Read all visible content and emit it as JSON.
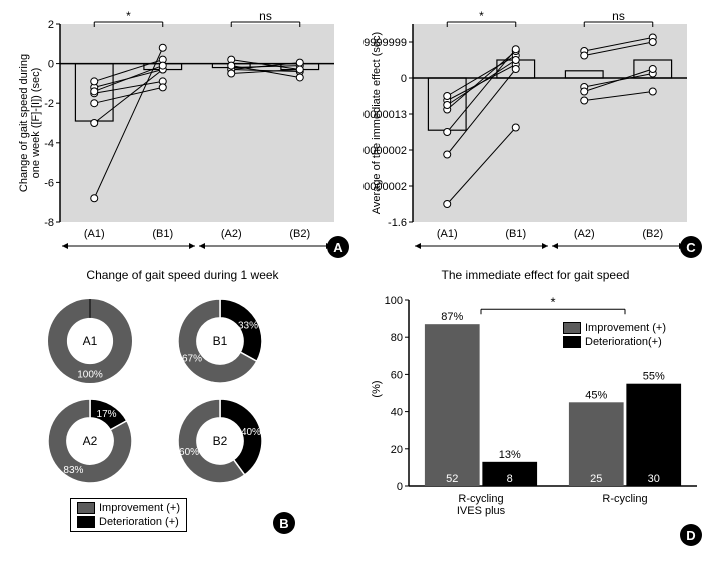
{
  "colors": {
    "bg": "#ffffff",
    "shade": "#d9d9d9",
    "bar_outline": "#000000",
    "bar_fillA": "#b0b0b0",
    "bar_fillC": "#b0b0b0",
    "marker_fill": "#ffffff",
    "marker_stroke": "#000000",
    "improvement": "#5c5c5c",
    "deterioration": "#000000",
    "axis": "#000000",
    "sig_line": "#000000"
  },
  "panelA": {
    "ylabel": "Change of gait speed during\none week ([F]-[I]) (sec)",
    "ylim": [
      -8,
      2
    ],
    "ytick_step": 2,
    "groups": [
      "(A1)",
      "(B1)",
      "(A2)",
      "(B2)"
    ],
    "bars": [
      -2.9,
      -0.3,
      -0.2,
      -0.3
    ],
    "sig": [
      {
        "from": 0,
        "to": 1,
        "label": "*",
        "y": 2
      },
      {
        "from": 2,
        "to": 3,
        "label": "ns",
        "y": 2
      }
    ],
    "shade_pairs": [
      [
        0,
        1
      ],
      [
        2,
        3
      ]
    ],
    "lines_left": [
      [
        -1.2,
        -0.3
      ],
      [
        -0.9,
        0.2
      ],
      [
        -1.5,
        -0.9
      ],
      [
        -3.0,
        -0.3
      ],
      [
        -2.0,
        -1.2
      ],
      [
        -6.8,
        0.8
      ],
      [
        -1.4,
        -0.1
      ]
    ],
    "lines_right": [
      [
        0.2,
        -0.3
      ],
      [
        -0.2,
        -0.1
      ],
      [
        -0.3,
        0.05
      ],
      [
        -0.3,
        -0.4
      ],
      [
        -0.5,
        -0.3
      ],
      [
        -0.1,
        -0.7
      ]
    ],
    "marker_r": 3.5,
    "label": "A"
  },
  "panelC": {
    "ylabel": "Average of the immediate effect (sec)",
    "ylim": [
      -1.6,
      0.6
    ],
    "ytick_step": 0.4,
    "groups": [
      "(A1)",
      "(B1)",
      "(A2)",
      "(B2)"
    ],
    "bars": [
      -0.58,
      0.2,
      0.08,
      0.2
    ],
    "sig": [
      {
        "from": 0,
        "to": 1,
        "label": "*",
        "y": 0.6
      },
      {
        "from": 2,
        "to": 3,
        "label": "ns",
        "y": 0.6
      }
    ],
    "shade_pairs": [
      [
        0,
        1
      ],
      [
        2,
        3
      ]
    ],
    "lines_left": [
      [
        -0.25,
        0.15
      ],
      [
        -0.2,
        0.25
      ],
      [
        -0.35,
        0.3
      ],
      [
        -0.6,
        0.32
      ],
      [
        -0.85,
        0.1
      ],
      [
        -1.4,
        -0.55
      ],
      [
        -0.3,
        0.2
      ]
    ],
    "lines_right": [
      [
        0.3,
        0.45
      ],
      [
        0.25,
        0.4
      ],
      [
        -0.1,
        0.05
      ],
      [
        -0.15,
        0.1
      ],
      [
        -0.25,
        -0.15
      ]
    ],
    "marker_r": 3.5,
    "label": "C"
  },
  "panelB": {
    "title": "Change of gait speed during 1 week",
    "charts": [
      {
        "name": "A1",
        "imp": 100,
        "det": 0
      },
      {
        "name": "B1",
        "imp": 67,
        "det": 33
      },
      {
        "name": "A2",
        "imp": 83,
        "det": 17
      },
      {
        "name": "B2",
        "imp": 60,
        "det": 40
      }
    ],
    "legend": {
      "imp": "Improvement (+)",
      "det": "Deterioration (+)"
    },
    "donut_inner": 0.55,
    "label": "B"
  },
  "panelD": {
    "title": "The immediate effect for gait speed",
    "ylabel": "(%)",
    "ylim": [
      0,
      100
    ],
    "ytick_step": 20,
    "groups": [
      "R-cycling\nIVES plus",
      "R-cycling"
    ],
    "series": [
      {
        "name": "Improvement (+)",
        "color_key": "improvement",
        "values": [
          87,
          45
        ],
        "n": [
          52,
          25
        ]
      },
      {
        "name": "Deterioration(+)",
        "color_key": "deterioration",
        "values": [
          13,
          55
        ],
        "n": [
          8,
          30
        ]
      }
    ],
    "sig": {
      "label": "*",
      "y": 95
    },
    "bar_width": 0.38,
    "label": "D"
  }
}
